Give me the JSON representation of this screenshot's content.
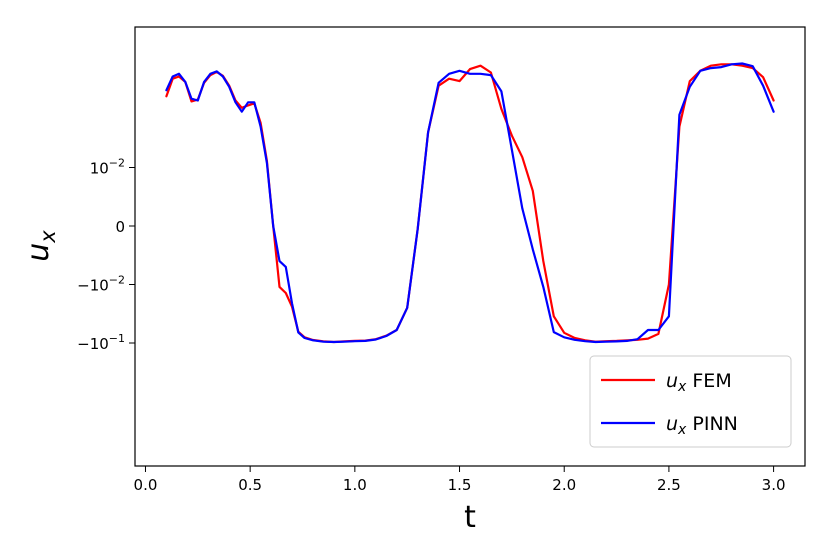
{
  "chart_data": {
    "type": "line",
    "xlabel": "t",
    "ylabel": {
      "base": "u",
      "sub": "x"
    },
    "xlim": [
      -0.05,
      3.15
    ],
    "x_ticks": [
      {
        "value": 0.0,
        "label": "0.0"
      },
      {
        "value": 0.5,
        "label": "0.5"
      },
      {
        "value": 1.0,
        "label": "1.0"
      },
      {
        "value": 1.5,
        "label": "1.5"
      },
      {
        "value": 2.0,
        "label": "2.0"
      },
      {
        "value": 2.5,
        "label": "2.5"
      },
      {
        "value": 3.0,
        "label": "3.0"
      }
    ],
    "y_scale": "symlog",
    "y_ticks": [
      {
        "value": 0.01,
        "base": "10",
        "exp": "−2"
      },
      {
        "value": 0,
        "base": "0",
        "exp": ""
      },
      {
        "value": -0.01,
        "base": "−10",
        "exp": "−2"
      },
      {
        "value": -0.1,
        "base": "−10",
        "exp": "−1"
      }
    ],
    "legend_position": "lower-right",
    "series": [
      {
        "name": "FEM",
        "legend_base": "u",
        "legend_sub": "x",
        "legend_suffix": " FEM",
        "color": "#ff0000",
        "points": [
          [
            0.1,
            0.165
          ],
          [
            0.13,
            0.33
          ],
          [
            0.16,
            0.36
          ],
          [
            0.19,
            0.29
          ],
          [
            0.22,
            0.135
          ],
          [
            0.25,
            0.145
          ],
          [
            0.28,
            0.28
          ],
          [
            0.31,
            0.38
          ],
          [
            0.34,
            0.43
          ],
          [
            0.37,
            0.37
          ],
          [
            0.4,
            0.25
          ],
          [
            0.43,
            0.14
          ],
          [
            0.46,
            0.105
          ],
          [
            0.49,
            0.115
          ],
          [
            0.52,
            0.125
          ],
          [
            0.55,
            0.058
          ],
          [
            0.58,
            0.013
          ],
          [
            0.61,
            0.0
          ],
          [
            0.64,
            -0.011
          ],
          [
            0.67,
            -0.014
          ],
          [
            0.7,
            -0.024
          ],
          [
            0.73,
            -0.064
          ],
          [
            0.76,
            -0.08
          ],
          [
            0.8,
            -0.089
          ],
          [
            0.85,
            -0.094
          ],
          [
            0.9,
            -0.096
          ],
          [
            0.95,
            -0.094
          ],
          [
            1.0,
            -0.092
          ],
          [
            1.05,
            -0.091
          ],
          [
            1.1,
            -0.086
          ],
          [
            1.15,
            -0.075
          ],
          [
            1.2,
            -0.06
          ],
          [
            1.25,
            -0.025
          ],
          [
            1.3,
            -0.0005
          ],
          [
            1.35,
            0.04
          ],
          [
            1.4,
            0.25
          ],
          [
            1.45,
            0.33
          ],
          [
            1.5,
            0.3
          ],
          [
            1.55,
            0.48
          ],
          [
            1.6,
            0.55
          ],
          [
            1.65,
            0.42
          ],
          [
            1.7,
            0.1
          ],
          [
            1.75,
            0.035
          ],
          [
            1.8,
            0.015
          ],
          [
            1.85,
            0.006
          ],
          [
            1.9,
            -0.006
          ],
          [
            1.95,
            -0.035
          ],
          [
            2.0,
            -0.067
          ],
          [
            2.05,
            -0.082
          ],
          [
            2.1,
            -0.09
          ],
          [
            2.15,
            -0.095
          ],
          [
            2.2,
            -0.093
          ],
          [
            2.25,
            -0.092
          ],
          [
            2.3,
            -0.09
          ],
          [
            2.35,
            -0.088
          ],
          [
            2.4,
            -0.084
          ],
          [
            2.45,
            -0.07
          ],
          [
            2.5,
            -0.01
          ],
          [
            2.55,
            0.05
          ],
          [
            2.6,
            0.3
          ],
          [
            2.65,
            0.45
          ],
          [
            2.7,
            0.55
          ],
          [
            2.75,
            0.58
          ],
          [
            2.8,
            0.58
          ],
          [
            2.85,
            0.55
          ],
          [
            2.9,
            0.5
          ],
          [
            2.95,
            0.35
          ],
          [
            3.0,
            0.14
          ]
        ]
      },
      {
        "name": "PINN",
        "legend_base": "u",
        "legend_sub": "x",
        "legend_suffix": " PINN",
        "color": "#0000ff",
        "points": [
          [
            0.1,
            0.21
          ],
          [
            0.13,
            0.36
          ],
          [
            0.16,
            0.4
          ],
          [
            0.19,
            0.29
          ],
          [
            0.22,
            0.15
          ],
          [
            0.25,
            0.14
          ],
          [
            0.28,
            0.29
          ],
          [
            0.31,
            0.4
          ],
          [
            0.34,
            0.44
          ],
          [
            0.37,
            0.36
          ],
          [
            0.4,
            0.24
          ],
          [
            0.43,
            0.13
          ],
          [
            0.46,
            0.09
          ],
          [
            0.49,
            0.13
          ],
          [
            0.52,
            0.13
          ],
          [
            0.55,
            0.05
          ],
          [
            0.58,
            0.012
          ],
          [
            0.61,
            0.0
          ],
          [
            0.64,
            -0.006
          ],
          [
            0.67,
            -0.007
          ],
          [
            0.7,
            -0.021
          ],
          [
            0.73,
            -0.066
          ],
          [
            0.76,
            -0.082
          ],
          [
            0.8,
            -0.09
          ],
          [
            0.85,
            -0.095
          ],
          [
            0.9,
            -0.096
          ],
          [
            0.95,
            -0.095
          ],
          [
            1.0,
            -0.093
          ],
          [
            1.05,
            -0.092
          ],
          [
            1.1,
            -0.087
          ],
          [
            1.15,
            -0.076
          ],
          [
            1.2,
            -0.06
          ],
          [
            1.25,
            -0.025
          ],
          [
            1.3,
            -0.0005
          ],
          [
            1.35,
            0.04
          ],
          [
            1.4,
            0.28
          ],
          [
            1.45,
            0.4
          ],
          [
            1.5,
            0.45
          ],
          [
            1.55,
            0.4
          ],
          [
            1.6,
            0.4
          ],
          [
            1.65,
            0.38
          ],
          [
            1.7,
            0.2
          ],
          [
            1.75,
            0.02
          ],
          [
            1.8,
            0.003
          ],
          [
            1.85,
            -0.004
          ],
          [
            1.9,
            -0.011
          ],
          [
            1.95,
            -0.065
          ],
          [
            2.0,
            -0.08
          ],
          [
            2.05,
            -0.088
          ],
          [
            2.1,
            -0.093
          ],
          [
            2.15,
            -0.096
          ],
          [
            2.2,
            -0.095
          ],
          [
            2.25,
            -0.094
          ],
          [
            2.3,
            -0.092
          ],
          [
            2.35,
            -0.086
          ],
          [
            2.4,
            -0.06
          ],
          [
            2.45,
            -0.06
          ],
          [
            2.5,
            -0.035
          ],
          [
            2.55,
            0.08
          ],
          [
            2.6,
            0.24
          ],
          [
            2.65,
            0.45
          ],
          [
            2.7,
            0.5
          ],
          [
            2.75,
            0.52
          ],
          [
            2.8,
            0.58
          ],
          [
            2.85,
            0.6
          ],
          [
            2.9,
            0.54
          ],
          [
            2.95,
            0.25
          ],
          [
            3.0,
            0.09
          ]
        ]
      }
    ]
  }
}
